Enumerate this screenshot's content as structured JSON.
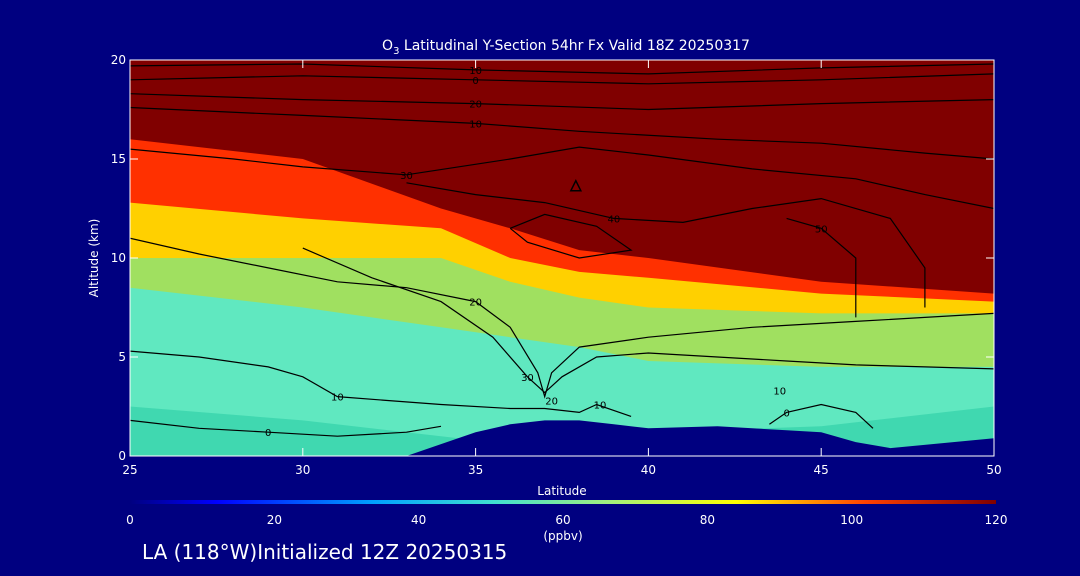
{
  "chart_data": {
    "type": "heatmap",
    "title_species": "O",
    "title_subscript": "3",
    "title_rest": " Latitudinal Y-Section 54hr  Fx Valid 18Z 20250317",
    "xlabel": "Latitude",
    "ylabel": "Altitude (km)",
    "xlim": [
      25,
      50
    ],
    "ylim": [
      0,
      20
    ],
    "x_ticks": [
      "25",
      "30",
      "35",
      "40",
      "45",
      "50"
    ],
    "y_ticks": [
      "0",
      "5",
      "10",
      "15",
      "20"
    ],
    "colorbar": {
      "ticks": [
        "0",
        "20",
        "40",
        "60",
        "80",
        "100",
        "120"
      ],
      "unit": "(ppbv)",
      "range": [
        0,
        120
      ]
    },
    "color_regions": [
      {
        "band": "100-120",
        "color": "#800000",
        "lower_boundary_km": [
          [
            25,
            16.0
          ],
          [
            30,
            15.0
          ],
          [
            34,
            12.5
          ],
          [
            36,
            11.5
          ],
          [
            38,
            10.4
          ],
          [
            40,
            10.0
          ],
          [
            45,
            8.8
          ],
          [
            50,
            8.2
          ]
        ]
      },
      {
        "band": "80-100",
        "color": "#ff3000",
        "lower_boundary_km": [
          [
            25,
            12.8
          ],
          [
            30,
            12.0
          ],
          [
            34,
            11.5
          ],
          [
            36,
            10.0
          ],
          [
            38,
            9.3
          ],
          [
            40,
            9.0
          ],
          [
            45,
            8.2
          ],
          [
            50,
            7.8
          ]
        ]
      },
      {
        "band": "70-80",
        "color": "#ffd000",
        "lower_boundary_km": [
          [
            25,
            10.0
          ],
          [
            30,
            10.0
          ],
          [
            34,
            10.0
          ],
          [
            36,
            8.8
          ],
          [
            38,
            8.0
          ],
          [
            40,
            7.5
          ],
          [
            45,
            7.2
          ],
          [
            50,
            7.2
          ]
        ]
      },
      {
        "band": "55-70",
        "color": "#a0e060",
        "lower_boundary_km": [
          [
            25,
            8.5
          ],
          [
            30,
            7.5
          ],
          [
            34,
            6.5
          ],
          [
            36,
            6.0
          ],
          [
            38,
            5.5
          ],
          [
            40,
            4.8
          ],
          [
            45,
            4.5
          ],
          [
            50,
            4.5
          ]
        ]
      },
      {
        "band": "45-55",
        "color": "#60e8c0",
        "lower_boundary_km": [
          [
            25,
            2.5
          ],
          [
            30,
            1.8
          ],
          [
            34,
            1.0
          ],
          [
            36,
            0.6
          ],
          [
            38,
            0.5
          ],
          [
            40,
            1.2
          ],
          [
            45,
            1.5
          ],
          [
            50,
            2.5
          ]
        ]
      }
    ],
    "terrain_km": [
      [
        25,
        0
      ],
      [
        33,
        0
      ],
      [
        34,
        0.6
      ],
      [
        35,
        1.2
      ],
      [
        36,
        1.6
      ],
      [
        37,
        1.8
      ],
      [
        38,
        1.8
      ],
      [
        39,
        1.6
      ],
      [
        40,
        1.4
      ],
      [
        42,
        1.5
      ],
      [
        44,
        1.3
      ],
      [
        45,
        1.2
      ],
      [
        46,
        0.7
      ],
      [
        47,
        0.4
      ],
      [
        50,
        0.9
      ]
    ],
    "contours": [
      {
        "label": "10",
        "points": [
          [
            25,
            19.7
          ],
          [
            30,
            19.8
          ],
          [
            35,
            19.5
          ],
          [
            40,
            19.3
          ],
          [
            45,
            19.6
          ],
          [
            50,
            19.8
          ]
        ]
      },
      {
        "label": "0",
        "points": [
          [
            25,
            19.0
          ],
          [
            30,
            19.2
          ],
          [
            35,
            19.0
          ],
          [
            40,
            18.8
          ],
          [
            45,
            19.0
          ],
          [
            50,
            19.3
          ]
        ]
      },
      {
        "label": "20",
        "points": [
          [
            25,
            18.3
          ],
          [
            30,
            18.0
          ],
          [
            35,
            17.8
          ],
          [
            40,
            17.5
          ],
          [
            45,
            17.8
          ],
          [
            50,
            18.0
          ]
        ]
      },
      {
        "label": "10",
        "points": [
          [
            25,
            17.6
          ],
          [
            30,
            17.2
          ],
          [
            35,
            16.8
          ],
          [
            38,
            16.4
          ],
          [
            42,
            16.0
          ],
          [
            45,
            15.8
          ],
          [
            48,
            15.3
          ],
          [
            50,
            15.0
          ]
        ]
      },
      {
        "label": "30",
        "points": [
          [
            25,
            15.5
          ],
          [
            28,
            15.0
          ],
          [
            30,
            14.6
          ],
          [
            33,
            14.2
          ],
          [
            36,
            15.0
          ],
          [
            38,
            15.6
          ],
          [
            40,
            15.2
          ],
          [
            43,
            14.5
          ],
          [
            46,
            14.0
          ],
          [
            48,
            13.2
          ],
          [
            50,
            12.5
          ]
        ]
      },
      {
        "label": "40",
        "points": [
          [
            33,
            13.8
          ],
          [
            35,
            13.2
          ],
          [
            37,
            12.8
          ],
          [
            39,
            12.0
          ],
          [
            41,
            11.8
          ],
          [
            43,
            12.5
          ],
          [
            45,
            13.0
          ],
          [
            47,
            12.0
          ],
          [
            48,
            9.5
          ],
          [
            48,
            7.5
          ]
        ]
      },
      {
        "label": "",
        "points": [
          [
            36,
            11.5
          ],
          [
            37,
            12.2
          ],
          [
            38.5,
            11.6
          ],
          [
            39.5,
            10.4
          ],
          [
            38,
            10.0
          ],
          [
            36.5,
            10.8
          ],
          [
            36,
            11.5
          ]
        ]
      },
      {
        "label": "50",
        "points": [
          [
            44,
            12.0
          ],
          [
            45,
            11.5
          ],
          [
            46,
            10.0
          ],
          [
            46,
            7.0
          ]
        ]
      },
      {
        "label": "20",
        "points": [
          [
            25,
            11.0
          ],
          [
            27,
            10.2
          ],
          [
            29,
            9.5
          ],
          [
            31,
            8.8
          ],
          [
            33,
            8.5
          ],
          [
            35,
            7.8
          ],
          [
            36,
            6.5
          ],
          [
            36.8,
            4.2
          ],
          [
            37,
            3.0
          ],
          [
            37.2,
            4.2
          ],
          [
            38,
            5.5
          ],
          [
            40,
            6.0
          ],
          [
            43,
            6.5
          ],
          [
            46,
            6.8
          ],
          [
            48,
            7.0
          ],
          [
            50,
            7.2
          ]
        ]
      },
      {
        "label": "30",
        "points": [
          [
            30,
            10.5
          ],
          [
            32,
            9.0
          ],
          [
            34,
            7.8
          ],
          [
            35.5,
            6.0
          ],
          [
            36.5,
            4.0
          ],
          [
            37,
            3.2
          ],
          [
            37.5,
            4.0
          ],
          [
            38.5,
            5.0
          ],
          [
            40,
            5.2
          ],
          [
            42,
            5.0
          ],
          [
            44,
            4.8
          ],
          [
            46,
            4.6
          ],
          [
            48,
            4.5
          ],
          [
            50,
            4.4
          ]
        ]
      },
      {
        "label": "10",
        "points": [
          [
            25,
            5.3
          ],
          [
            27,
            5.0
          ],
          [
            29,
            4.5
          ],
          [
            30,
            4.0
          ],
          [
            31,
            3.0
          ],
          [
            32.5,
            2.8
          ],
          [
            34,
            2.6
          ],
          [
            36,
            2.4
          ],
          [
            37,
            2.4
          ],
          [
            38,
            2.2
          ],
          [
            38.5,
            2.6
          ],
          [
            39.5,
            2.0
          ]
        ]
      },
      {
        "label": "0",
        "points": [
          [
            25,
            1.8
          ],
          [
            27,
            1.4
          ],
          [
            29,
            1.2
          ],
          [
            31,
            1.0
          ],
          [
            33,
            1.2
          ],
          [
            34,
            1.5
          ]
        ]
      },
      {
        "label": "0",
        "points": [
          [
            43.5,
            1.6
          ],
          [
            44,
            2.2
          ],
          [
            45,
            2.6
          ],
          [
            46,
            2.2
          ],
          [
            46.5,
            1.4
          ]
        ]
      }
    ],
    "annotations": [
      {
        "text": "10",
        "x": 43.8,
        "y": 3.1
      },
      {
        "text": "20",
        "x": 37.2,
        "y": 2.6
      },
      {
        "text": "10",
        "x": 38.6,
        "y": 2.4
      }
    ],
    "marker": {
      "shape": "triangle",
      "x": 37.9,
      "y": 13.6
    }
  },
  "footer": {
    "text": "LA (118°W)Initialized 12Z 20250315"
  }
}
